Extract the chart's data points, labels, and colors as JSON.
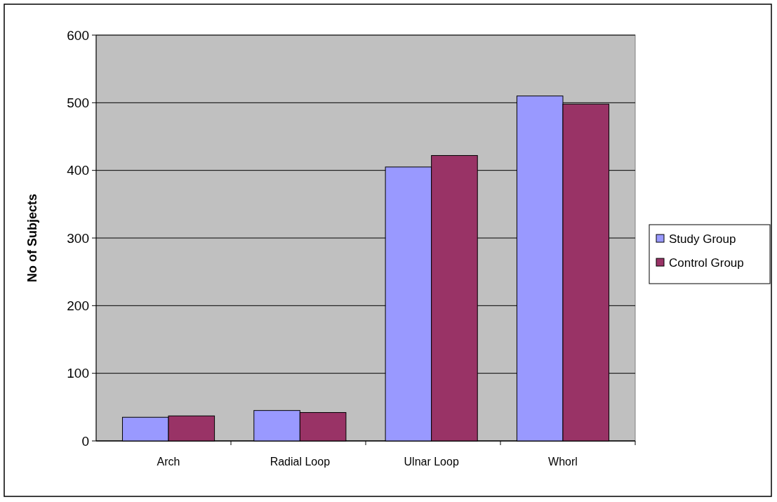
{
  "chart_data": {
    "type": "bar",
    "ylabel": "No of Subjects",
    "categories": [
      "Arch",
      "Radial Loop",
      "Ulnar Loop",
      "Whorl"
    ],
    "series": [
      {
        "name": "Study Group",
        "color": "#9999ff",
        "values": [
          35,
          45,
          405,
          510
        ]
      },
      {
        "name": "Control Group",
        "color": "#993366",
        "values": [
          37,
          42,
          422,
          498
        ]
      }
    ],
    "ylim": [
      0,
      600
    ],
    "yticks": [
      0,
      100,
      200,
      300,
      400,
      500,
      600
    ],
    "grid": "y",
    "legend": "right"
  }
}
